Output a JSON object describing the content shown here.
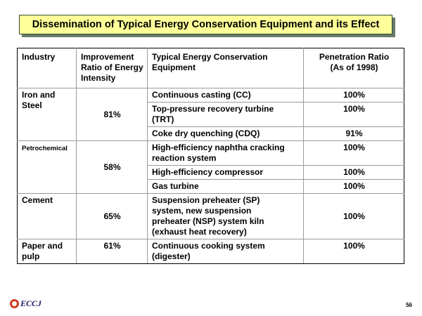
{
  "title": "Dissemination of Typical Energy Conservation Equipment and its Effect",
  "headers": {
    "industry": "Industry",
    "improvement_line1": "Improvement",
    "improvement_line2": "Ratio of Energy",
    "improvement_line3": "Intensity",
    "equipment_line1": "Typical Energy Conservation",
    "equipment_line2": "Equipment",
    "penetration_line1": "Penetration Ratio",
    "penetration_line2": "(As of 1998)"
  },
  "rows": [
    {
      "industry_line1": "Iron and",
      "industry_line2": "Steel",
      "ratio": "81%",
      "equipment": [
        {
          "line1": "Continuous casting (CC)",
          "line2": "",
          "penetration": "100%"
        },
        {
          "line1": "Top-pressure recovery turbine",
          "line2": "(TRT)",
          "penetration": "100%"
        },
        {
          "line1": "Coke dry quenching (CDQ)",
          "line2": "",
          "penetration": "91%"
        }
      ]
    },
    {
      "industry_line1": "Petrochemical",
      "industry_line2": "",
      "ratio": "58%",
      "equipment": [
        {
          "line1": "High-efficiency naphtha cracking",
          "line2": "reaction system",
          "penetration": "100%"
        },
        {
          "line1": "High-efficiency compressor",
          "line2": "",
          "penetration": "100%"
        },
        {
          "line1": "Gas turbine",
          "line2": "",
          "penetration": "100%"
        }
      ]
    },
    {
      "industry_line1": "Cement",
      "industry_line2": "",
      "ratio": "65%",
      "equipment": [
        {
          "line1": "Suspension preheater (SP)",
          "line2": "system, new suspension",
          "line3": "preheater (NSP) system kiln",
          "line4": "(exhaust heat recovery)",
          "penetration": "100%"
        }
      ]
    },
    {
      "industry_line1": "Paper and",
      "industry_line2": "pulp",
      "ratio": "61%",
      "equipment": [
        {
          "line1": "Continuous cooking system",
          "line2": "(digester)",
          "penetration": "100%"
        }
      ]
    }
  ],
  "footer": {
    "logo_text": "ECCJ",
    "page_number": "56"
  }
}
